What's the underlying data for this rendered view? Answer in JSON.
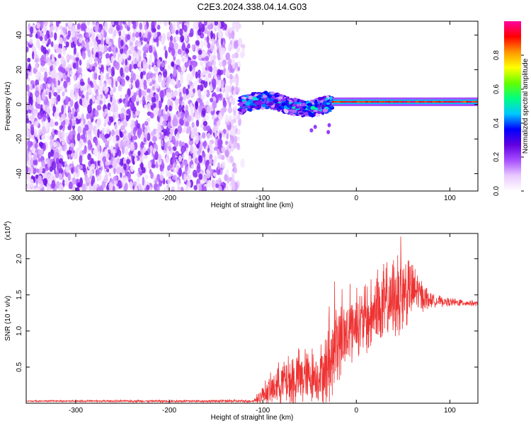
{
  "title": "C2E3.2024.338.04.14.G03",
  "chart_data": [
    {
      "type": "heatmap",
      "xlabel": "Height of straight line (km)",
      "ylabel": "Frequency (Hz)",
      "xlim": [
        -353,
        130
      ],
      "ylim": [
        -50,
        48
      ],
      "xticks": [
        -300,
        -200,
        -100,
        0,
        100
      ],
      "yticks": [
        -40,
        -20,
        0,
        20,
        40
      ],
      "colorbar": {
        "label": "Normalized spectral amplitude",
        "range": [
          0.0,
          1.0
        ],
        "ticks": [
          0.0,
          0.2,
          0.4,
          0.6,
          0.8
        ],
        "colormap": [
          "#ffffff",
          "#e9c9ff",
          "#a64dff",
          "#6000e0",
          "#0000ff",
          "#00c8ff",
          "#00ff7f",
          "#64ff00",
          "#ffff00",
          "#ff9600",
          "#ff0000",
          "#ff00a0"
        ]
      },
      "regions": [
        {
          "x": [
            -353,
            -125
          ],
          "freq": [
            -50,
            48
          ],
          "amplitude": 0.1,
          "pattern": "noise"
        },
        {
          "x": [
            -125,
            -25
          ],
          "freq": [
            -5,
            8
          ],
          "amplitude": 0.45,
          "pattern": "signal band"
        },
        {
          "x": [
            -25,
            130
          ],
          "freq": [
            0,
            3
          ],
          "amplitude": 0.9,
          "pattern": "carrier line"
        }
      ],
      "grid": false
    },
    {
      "type": "line",
      "xlabel": "Height of straight line (km)",
      "ylabel": "SNR (10 * v/v)",
      "scale_label": "(x10^4)",
      "xlim": [
        -353,
        130
      ],
      "ylim": [
        0.0,
        2.35
      ],
      "xticks": [
        -300,
        -200,
        -100,
        0,
        100
      ],
      "yticks": [
        0.5,
        1.0,
        1.5,
        2.0
      ],
      "color": "#ee3333",
      "envelope": {
        "x": [
          -353,
          -110,
          -100,
          -80,
          -60,
          -40,
          -30,
          -20,
          -10,
          0,
          10,
          20,
          30,
          40,
          50,
          60,
          70,
          80,
          100,
          130
        ],
        "y": [
          0.03,
          0.03,
          0.12,
          0.3,
          0.35,
          0.4,
          0.5,
          0.9,
          0.9,
          1.1,
          1.15,
          1.25,
          1.35,
          1.45,
          1.55,
          1.55,
          1.5,
          1.42,
          1.4,
          1.38
        ],
        "spread": [
          0.01,
          0.02,
          0.15,
          0.35,
          0.45,
          0.4,
          0.55,
          0.6,
          0.55,
          0.45,
          0.5,
          0.55,
          0.6,
          0.6,
          0.55,
          0.4,
          0.25,
          0.1,
          0.06,
          0.04
        ]
      },
      "grid": false
    }
  ]
}
